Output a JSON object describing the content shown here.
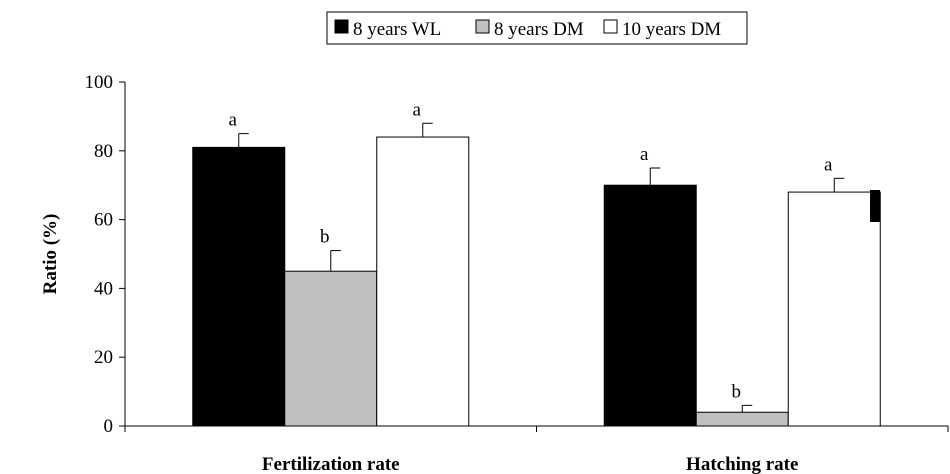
{
  "chart_data": {
    "type": "bar",
    "title": "",
    "xlabel": "",
    "ylabel": "Ratio (%)",
    "ylim": [
      0,
      100
    ],
    "yticks": [
      0,
      20,
      40,
      60,
      80,
      100
    ],
    "grid": false,
    "legend_position": "top-center",
    "categories": [
      "Fertilization rate",
      "Hatching rate"
    ],
    "series": [
      {
        "name": "8 years WL",
        "color": "#000000",
        "values": [
          81,
          70
        ],
        "errors": [
          4,
          5
        ],
        "labels": [
          "a",
          "a"
        ]
      },
      {
        "name": "8 years DM",
        "color": "#c0c0c0",
        "values": [
          45,
          4
        ],
        "errors": [
          6,
          2
        ],
        "labels": [
          "b",
          "b"
        ]
      },
      {
        "name": "10 years DM",
        "color": "#ffffff",
        "values": [
          84,
          68
        ],
        "errors": [
          4,
          4
        ],
        "labels": [
          "a",
          "a"
        ]
      }
    ]
  }
}
